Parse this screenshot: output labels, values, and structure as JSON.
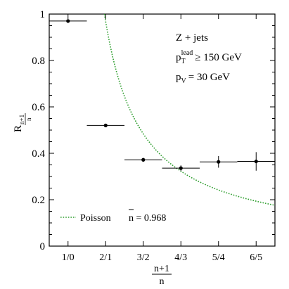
{
  "chart_data": {
    "type": "scatter",
    "xlabel_num": "n+1",
    "xlabel_den": "n",
    "ylabel_main": "R",
    "ylabel_sub_num": "n+1",
    "ylabel_sub_den": "n",
    "ylim": [
      0,
      1
    ],
    "categories": [
      "1/0",
      "2/1",
      "3/2",
      "4/3",
      "5/4",
      "6/5"
    ],
    "y_ticks": [
      {
        "value": 0,
        "label": "0"
      },
      {
        "value": 0.2,
        "label": "0.2"
      },
      {
        "value": 0.4,
        "label": "0.4"
      },
      {
        "value": 0.6,
        "label": "0.6"
      },
      {
        "value": 0.8,
        "label": "0.8"
      },
      {
        "value": 1,
        "label": "1"
      }
    ],
    "series": [
      {
        "points": [
          {
            "x": 1,
            "y": 0.97,
            "y_err": 0.006,
            "x_err": 0.5
          },
          {
            "x": 2,
            "y": 0.52,
            "y_err": 0.006,
            "x_err": 0.5
          },
          {
            "x": 3,
            "y": 0.372,
            "y_err": 0.008,
            "x_err": 0.5
          },
          {
            "x": 4,
            "y": 0.336,
            "y_err": 0.012,
            "x_err": 0.5
          },
          {
            "x": 5,
            "y": 0.363,
            "y_err": 0.025,
            "x_err": 0.5
          },
          {
            "x": 6,
            "y": 0.365,
            "y_err": 0.04,
            "x_err": 0.5
          }
        ],
        "color": "#000000"
      },
      {
        "name": "Poisson",
        "type": "line",
        "style": "dotted",
        "color": "#2e9e2e",
        "nbar": 0.968,
        "model": "R = nbar / (x - 1) at x-position n+1 (category index)"
      }
    ],
    "annotations": {
      "process": "Z + jets",
      "cut1_main": "p",
      "cut1_sub": "T",
      "cut1_sup": "lead",
      "cut1_rest": "≥ 150 GeV",
      "cut2_main": "p",
      "cut2_sub": "V",
      "cut2_rest": "=  30 GeV"
    },
    "legend": {
      "position": "bottom-left",
      "label": "Poisson",
      "nbar_symbol": "n",
      "nbar_text": " = 0.968"
    }
  }
}
